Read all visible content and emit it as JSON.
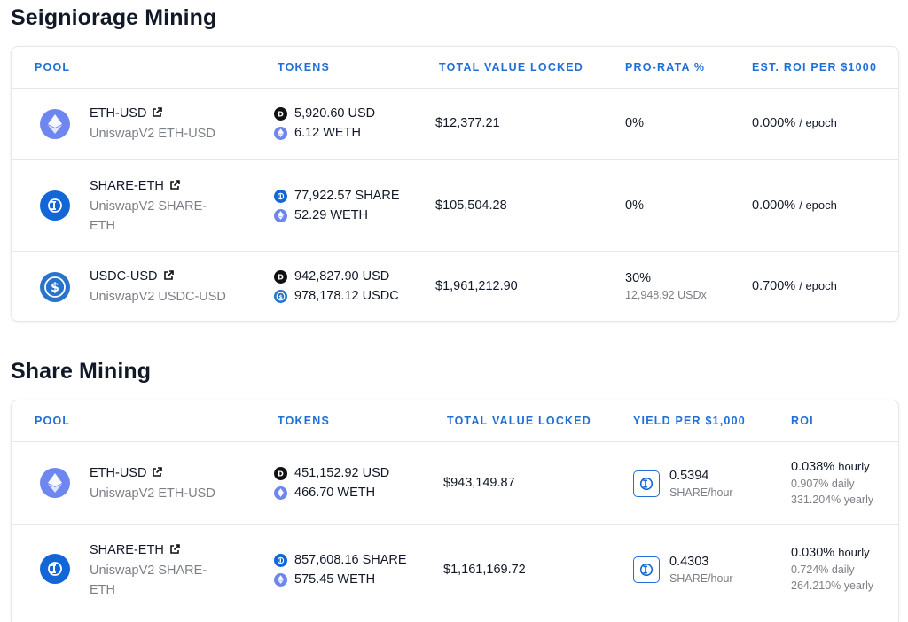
{
  "seigniorage": {
    "title": "Seigniorage Mining",
    "headers": [
      "POOL",
      "TOKENS",
      "TOTAL VALUE LOCKED",
      "PRO-RATA %",
      "EST. ROI PER $1000"
    ],
    "rows": [
      {
        "pool": "ETH-USD",
        "sub": "UniswapV2 ETH-USD",
        "icon": "eth-icon",
        "token1": "5,920.60 USD",
        "token2": "6.12 WETH",
        "tvl": "$12,377.21",
        "prorata": "0%",
        "prorata_sub": "",
        "roi": "0.000%",
        "roi_unit": "/ epoch"
      },
      {
        "pool": "SHARE-ETH",
        "sub": "UniswapV2 SHARE-ETH",
        "icon": "share-icon",
        "token1": "77,922.57 SHARE",
        "token2": "52.29 WETH",
        "tvl": "$105,504.28",
        "prorata": "0%",
        "prorata_sub": "",
        "roi": "0.000%",
        "roi_unit": "/ epoch"
      },
      {
        "pool": "USDC-USD",
        "sub": "UniswapV2 USDC-USD",
        "icon": "usdc-icon",
        "token1": "942,827.90 USD",
        "token2": "978,178.12 USDC",
        "tvl": "$1,961,212.90",
        "prorata": "30%",
        "prorata_sub": "12,948.92 USDx",
        "roi": "0.700%",
        "roi_unit": "/ epoch"
      }
    ]
  },
  "share": {
    "title": "Share Mining",
    "headers": [
      "POOL",
      "TOKENS",
      "TOTAL VALUE LOCKED",
      "YIELD PER $1,000",
      "ROI"
    ],
    "rows": [
      {
        "pool": "ETH-USD",
        "sub": "UniswapV2 ETH-USD",
        "token1": "451,152.92 USD",
        "token2": "466.70 WETH",
        "tvl": "$943,149.87",
        "yield": "0.5394",
        "yield_unit": "SHARE/hour",
        "roi_hourly": "0.038%",
        "roi_hourly_unit": "hourly",
        "roi_daily": "0.907% daily",
        "roi_yearly": "331.204% yearly"
      },
      {
        "pool": "SHARE-ETH",
        "sub": "UniswapV2 SHARE-ETH",
        "token1": "857,608.16 SHARE",
        "token2": "575.45 WETH",
        "tvl": "$1,161,169.72",
        "yield": "0.4303",
        "yield_unit": "SHARE/hour",
        "roi_hourly": "0.030%",
        "roi_hourly_unit": "hourly",
        "roi_daily": "0.724% daily",
        "roi_yearly": "264.210% yearly"
      }
    ]
  },
  "colors": {
    "accent": "#1f6fd6",
    "eth": "#6e86f0",
    "share": "#1266d6",
    "usdc": "#2774ca",
    "muted": "#7b7f86"
  }
}
